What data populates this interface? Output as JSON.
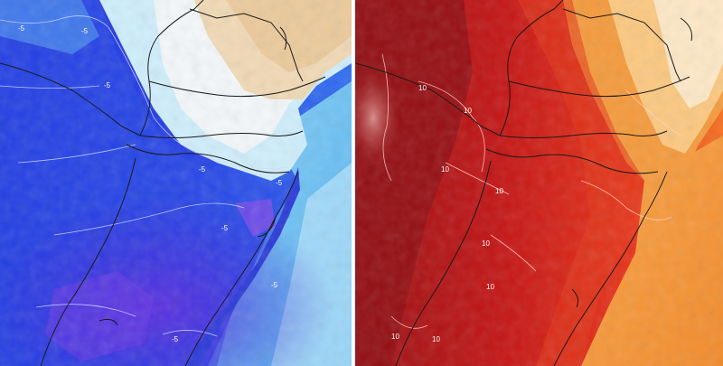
{
  "left_panel": {
    "contour_labels": [
      "-5",
      "-5",
      "-5",
      "-5",
      "-5",
      "-5",
      "-5",
      "-5"
    ]
  },
  "right_panel": {
    "contour_labels": [
      "10",
      "10",
      "10",
      "10",
      "10",
      "10",
      "10",
      "10"
    ]
  },
  "colors": {
    "cold_deep": "#3b1fd6",
    "cold_mid": "#1c4be8",
    "cold_light": "#5ab6f2",
    "cold_pale": "#cfeefc",
    "cold_white": "#f4f8fa",
    "cold_tan": "#f0d3a8",
    "warm_dark": "#8e0e12",
    "warm_mid": "#cc1414",
    "warm_orange": "#f0641a",
    "warm_light": "#f9a64a",
    "warm_pale": "#fde8c6"
  }
}
